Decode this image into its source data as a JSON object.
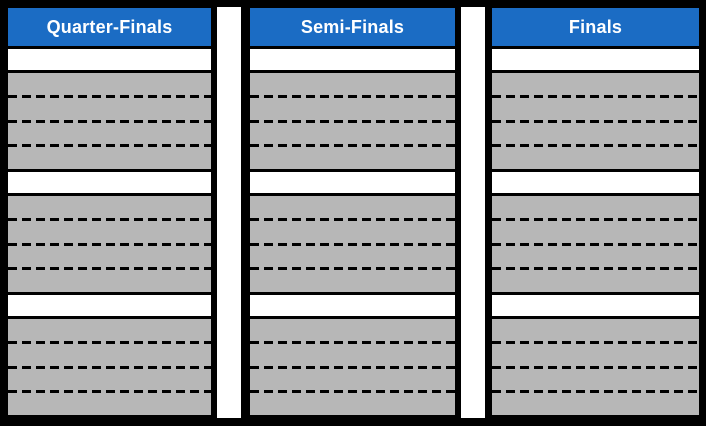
{
  "bracket": {
    "columns": [
      {
        "id": "quarter-finals",
        "label": "Quarter-Finals"
      },
      {
        "id": "semi-finals",
        "label": "Semi-Finals"
      },
      {
        "id": "finals",
        "label": "Finals"
      }
    ],
    "groups_per_column": 3,
    "rows_per_group": {
      "white_rows": 1,
      "gray_rows": 4
    },
    "rows_are_blank": true
  },
  "colors": {
    "canvas_border": "#000000",
    "header_bg": "#1b6cc4",
    "header_text": "#ffffff",
    "row_white": "#ffffff",
    "row_gray": "#b7b7b7",
    "divider_solid": "#000000",
    "divider_dashed": "#000000",
    "column_gap_strip": "#ffffff"
  }
}
